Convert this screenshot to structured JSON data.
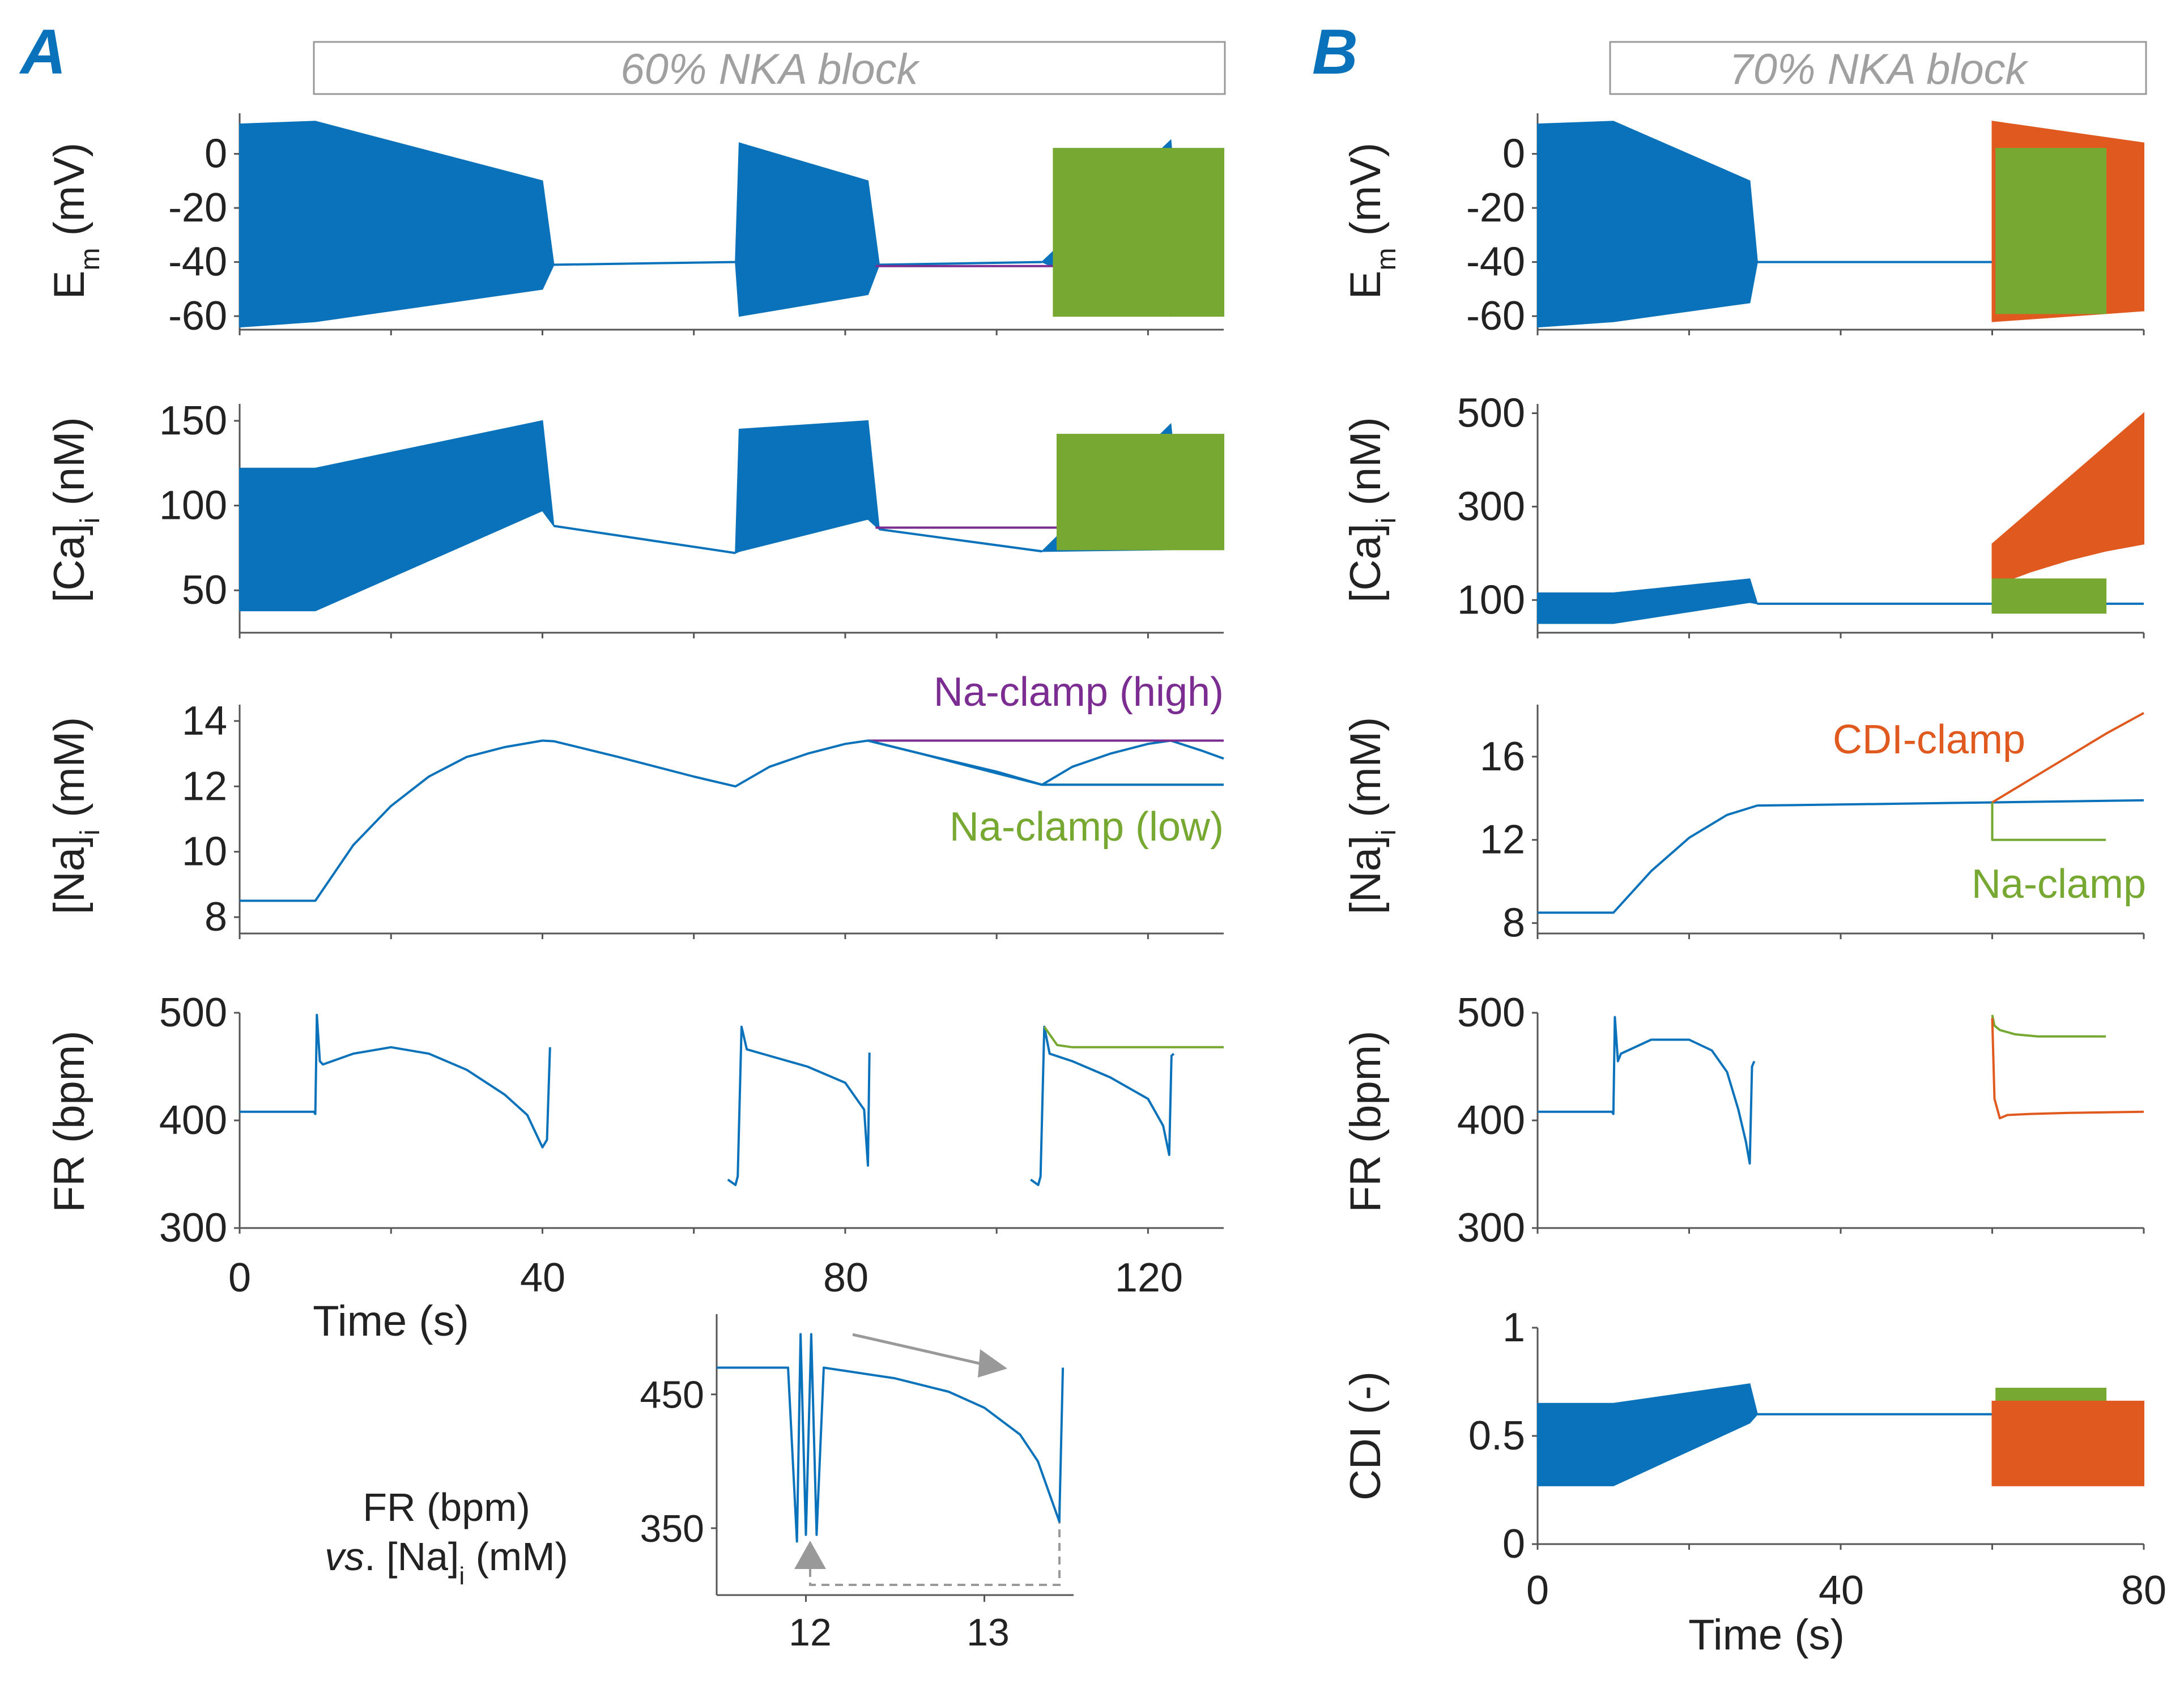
{
  "colors": {
    "blue": "#0a72ba",
    "green": "#76a832",
    "orange": "#e05a20",
    "purple": "#7b2d92",
    "gray": "#a0a0a0",
    "axis": "#555555",
    "panel_letter": "#0a72ba"
  },
  "panel_a": {
    "letter": "A",
    "condition": "60% NKA block"
  },
  "panel_b": {
    "letter": "B",
    "condition": "70% NKA block"
  },
  "labels": {
    "em_y": "E",
    "em_sub": "m",
    "em_unit": " (mV)",
    "ca_y": "[Ca]",
    "ca_sub": "i",
    "ca_unit": " (nM)",
    "na_y": "[Na]",
    "na_sub": "i",
    "na_unit": " (mM)",
    "fr_y": "FR (bpm)",
    "cdi_y": "CDI (-)",
    "time_x": "Time (s)",
    "inset_line1": "FR (bpm)",
    "inset_vs": "vs",
    "inset_rest": ". [Na]",
    "inset_sub": "i",
    "inset_unit": " (mM)"
  },
  "chart_data": [
    {
      "id": "A-Em",
      "type": "line",
      "title": "60% NKA block",
      "ylabel": "Em (mV)",
      "xlim": [
        0,
        130
      ],
      "ylim": [
        -65,
        15
      ],
      "yticks": [
        0,
        -20,
        -40,
        -60
      ],
      "series": [
        {
          "name": "baseline",
          "color": "blue",
          "type": "osc",
          "x": [
            0,
            10,
            40,
            41.5,
            65.5,
            66,
            83,
            84.5,
            106,
            123,
            124.5,
            130
          ],
          "lo": [
            -64,
            -62,
            -50,
            -41,
            -40,
            -60,
            -52,
            -41,
            -40,
            -60,
            -41,
            -41
          ],
          "hi": [
            11,
            12,
            -10,
            -41,
            -40,
            4,
            -10,
            -41,
            -40,
            5,
            -41,
            -41
          ]
        },
        {
          "name": "Na-clamp (high)",
          "color": "purple",
          "type": "line",
          "x": [
            84,
            130
          ],
          "y": [
            -41.5,
            -41.5
          ]
        },
        {
          "name": "Na-clamp (low)",
          "color": "green",
          "type": "band",
          "x": [
            107.5,
            130
          ],
          "lo": [
            -60,
            -60
          ],
          "hi": [
            2,
            2
          ]
        }
      ]
    },
    {
      "id": "A-Ca",
      "type": "line",
      "ylabel": "[Ca]i (nM)",
      "xlim": [
        0,
        130
      ],
      "ylim": [
        25,
        160
      ],
      "yticks": [
        150,
        100,
        50
      ],
      "series": [
        {
          "name": "baseline",
          "color": "blue",
          "type": "osc",
          "x": [
            0,
            10,
            40,
            41.5,
            65.5,
            66,
            83,
            84.5,
            106,
            123,
            124.5,
            130
          ],
          "lo": [
            38,
            38,
            97,
            88,
            72,
            73,
            92,
            86,
            73,
            74,
            84,
            80
          ],
          "hi": [
            122,
            122,
            150,
            88,
            72,
            145,
            150,
            86,
            73,
            148,
            84,
            80
          ]
        },
        {
          "name": "Na-clamp (high)",
          "color": "purple",
          "type": "line",
          "x": [
            84,
            130
          ],
          "y": [
            87,
            87
          ]
        },
        {
          "name": "Na-clamp (low)",
          "color": "green",
          "type": "band",
          "x": [
            108,
            130
          ],
          "lo": [
            74,
            74
          ],
          "hi": [
            142,
            142
          ]
        }
      ]
    },
    {
      "id": "A-Na",
      "type": "line",
      "ylabel": "[Na]i (mM)",
      "xlim": [
        0,
        130
      ],
      "ylim": [
        7.5,
        14.5
      ],
      "yticks": [
        14,
        12,
        10,
        8
      ],
      "annotations": [
        {
          "text": "Na-clamp (high)",
          "color": "purple"
        },
        {
          "text": "Na-clamp (low)",
          "color": "green"
        }
      ],
      "series": [
        {
          "name": "baseline",
          "color": "blue",
          "type": "line",
          "x": [
            0,
            10,
            15,
            20,
            25,
            30,
            35,
            40,
            41.5,
            50,
            60,
            65.5,
            70,
            75,
            80,
            83,
            90,
            100,
            106,
            110,
            115,
            120,
            123,
            127,
            130
          ],
          "y": [
            8.5,
            8.5,
            10.2,
            11.4,
            12.3,
            12.9,
            13.2,
            13.4,
            13.38,
            12.9,
            12.3,
            12.0,
            12.6,
            13.0,
            13.3,
            13.4,
            13.0,
            12.4,
            12.05,
            12.6,
            13.0,
            13.3,
            13.4,
            13.1,
            12.85
          ]
        },
        {
          "name": "Na-clamp (high)",
          "color": "purple",
          "type": "line",
          "x": [
            83,
            130
          ],
          "y": [
            13.4,
            13.4
          ]
        },
        {
          "name": "Na-clamp (low)",
          "color": "green",
          "type": "line",
          "x": [
            106,
            130
          ],
          "y": [
            12.05,
            12.05
          ]
        },
        {
          "name": "baseline-branch",
          "color": "blue",
          "type": "line",
          "x": [
            83,
            90,
            100,
            106,
            115,
            123,
            130
          ],
          "y": [
            13.4,
            13.0,
            12.45,
            12.05,
            12.05,
            12.05,
            12.05
          ]
        }
      ]
    },
    {
      "id": "A-FR",
      "type": "line",
      "ylabel": "FR (bpm)",
      "xlim": [
        0,
        130
      ],
      "ylim": [
        300,
        500
      ],
      "yticks": [
        500,
        400,
        300
      ],
      "series": [
        {
          "name": "baseline",
          "color": "blue",
          "type": "line",
          "x": [
            0,
            9.8,
            10,
            10.2,
            10.6,
            11,
            15,
            20,
            25,
            30,
            35,
            38,
            40,
            40.6,
            41
          ],
          "y": [
            408,
            408,
            406,
            498,
            455,
            452,
            462,
            468,
            462,
            447,
            424,
            405,
            375,
            382,
            468
          ]
        },
        {
          "name": "baseline-2",
          "color": "blue",
          "type": "line",
          "x": [
            64.5,
            65.5,
            65.8,
            66.3,
            67,
            70,
            75,
            80,
            82.5,
            83,
            83.2
          ],
          "y": [
            345,
            340,
            348,
            487,
            466,
            460,
            450,
            435,
            410,
            358,
            463
          ]
        },
        {
          "name": "baseline-3",
          "color": "blue",
          "type": "line",
          "x": [
            104.5,
            105.5,
            105.8,
            106.3,
            107,
            110,
            115,
            120,
            122,
            122.8,
            123.1,
            123.4
          ],
          "y": [
            345,
            340,
            348,
            487,
            462,
            455,
            440,
            420,
            395,
            368,
            460,
            462
          ]
        },
        {
          "name": "Na-clamp (low)",
          "color": "green",
          "type": "line",
          "x": [
            106.3,
            108,
            110,
            130
          ],
          "y": [
            487,
            470,
            468,
            468
          ]
        }
      ]
    },
    {
      "id": "A-inset",
      "type": "line",
      "title": "FR (bpm) vs. [Na]i (mM)",
      "xlim": [
        11.5,
        13.5
      ],
      "ylim": [
        300,
        510
      ],
      "yticks": [
        450,
        350
      ],
      "xticks": [
        12,
        13
      ],
      "series": [
        {
          "name": "FR vs Na",
          "color": "blue",
          "type": "line",
          "x": [
            11.5,
            11.9,
            11.95,
            11.97,
            12.0,
            12.03,
            12.06,
            12.1,
            12.5,
            12.8,
            13.0,
            13.2,
            13.3,
            13.38,
            13.42,
            13.44
          ],
          "y": [
            470,
            470,
            340,
            495,
            345,
            495,
            345,
            470,
            462,
            452,
            440,
            420,
            400,
            370,
            355,
            470
          ]
        }
      ]
    },
    {
      "id": "B-Em",
      "type": "line",
      "title": "70% NKA block",
      "ylabel": "Em (mV)",
      "xlim": [
        0,
        80
      ],
      "ylim": [
        -65,
        15
      ],
      "yticks": [
        0,
        -20,
        -40,
        -60
      ],
      "series": [
        {
          "name": "baseline",
          "color": "blue",
          "type": "osc",
          "x": [
            0,
            10,
            28,
            29,
            30,
            80
          ],
          "lo": [
            -64,
            -62,
            -55,
            -40,
            -40,
            -40
          ],
          "hi": [
            11,
            12,
            -10,
            -40,
            -40,
            -40
          ]
        },
        {
          "name": "CDI-clamp",
          "color": "orange",
          "type": "band",
          "x": [
            60,
            80
          ],
          "lo": [
            -62,
            -58
          ],
          "hi": [
            12,
            4
          ]
        },
        {
          "name": "Na-clamp",
          "color": "green",
          "type": "band",
          "x": [
            60.5,
            75
          ],
          "lo": [
            -59,
            -59
          ],
          "hi": [
            2,
            2
          ]
        }
      ]
    },
    {
      "id": "B-Ca",
      "type": "line",
      "ylabel": "[Ca]i (nM)",
      "xlim": [
        0,
        80
      ],
      "ylim": [
        30,
        520
      ],
      "yticks": [
        500,
        300,
        100
      ],
      "series": [
        {
          "name": "baseline",
          "color": "blue",
          "type": "osc",
          "x": [
            0,
            10,
            28,
            29,
            80
          ],
          "lo": [
            50,
            50,
            95,
            92,
            92
          ],
          "hi": [
            115,
            115,
            145,
            92,
            92
          ]
        },
        {
          "name": "CDI-clamp",
          "color": "orange",
          "type": "band",
          "x": [
            60,
            65,
            70,
            75,
            80
          ],
          "lo": [
            130,
            160,
            185,
            205,
            220
          ],
          "hi": [
            220,
            290,
            360,
            430,
            500
          ]
        },
        {
          "name": "Na-clamp",
          "color": "green",
          "type": "band",
          "x": [
            60,
            75
          ],
          "lo": [
            72,
            72
          ],
          "hi": [
            145,
            145
          ]
        }
      ]
    },
    {
      "id": "B-Na",
      "type": "line",
      "ylabel": "[Na]i (mM)",
      "xlim": [
        0,
        80
      ],
      "ylim": [
        7.5,
        18.5
      ],
      "yticks": [
        16,
        12,
        8
      ],
      "annotations": [
        {
          "text": "CDI-clamp",
          "color": "orange"
        },
        {
          "text": "Na-clamp",
          "color": "green"
        }
      ],
      "series": [
        {
          "name": "baseline",
          "color": "blue",
          "type": "line",
          "x": [
            0,
            10,
            15,
            20,
            25,
            29,
            40,
            60,
            80
          ],
          "y": [
            8.5,
            8.5,
            10.5,
            12.1,
            13.2,
            13.65,
            13.7,
            13.8,
            13.9
          ]
        },
        {
          "name": "CDI-clamp",
          "color": "orange",
          "type": "line",
          "x": [
            60,
            65,
            70,
            75,
            80
          ],
          "y": [
            13.8,
            14.9,
            16.0,
            17.1,
            18.1
          ]
        },
        {
          "name": "Na-clamp",
          "color": "green",
          "type": "line",
          "x": [
            60,
            60,
            75
          ],
          "y": [
            13.8,
            12.0,
            12.0
          ]
        }
      ]
    },
    {
      "id": "B-FR",
      "type": "line",
      "ylabel": "FR (bpm)",
      "xlim": [
        0,
        80
      ],
      "ylim": [
        300,
        500
      ],
      "yticks": [
        500,
        400,
        300
      ],
      "series": [
        {
          "name": "baseline",
          "color": "blue",
          "type": "line",
          "x": [
            0,
            9.8,
            10,
            10.2,
            10.6,
            11,
            15,
            20,
            23,
            25,
            26.5,
            27.5,
            28,
            28.3,
            28.6
          ],
          "y": [
            408,
            408,
            406,
            496,
            455,
            462,
            475,
            475,
            465,
            445,
            410,
            380,
            360,
            450,
            455
          ]
        },
        {
          "name": "Na-clamp",
          "color": "green",
          "type": "line",
          "x": [
            60,
            60.3,
            61,
            63,
            66,
            70,
            75
          ],
          "y": [
            498,
            488,
            484,
            480,
            478,
            478,
            478
          ]
        },
        {
          "name": "CDI-clamp",
          "color": "orange",
          "type": "line",
          "x": [
            60,
            60.3,
            61,
            62,
            65,
            70,
            80
          ],
          "y": [
            495,
            420,
            402,
            405,
            406,
            407,
            408
          ]
        }
      ]
    },
    {
      "id": "B-CDI",
      "type": "line",
      "ylabel": "CDI (-)",
      "xlabel": "Time (s)",
      "xlim": [
        0,
        80
      ],
      "ylim": [
        0,
        1
      ],
      "yticks": [
        1,
        0.5,
        0
      ],
      "xticks": [
        0,
        40,
        80
      ],
      "series": [
        {
          "name": "baseline",
          "color": "blue",
          "type": "osc",
          "x": [
            0,
            10,
            28,
            29,
            80
          ],
          "lo": [
            0.27,
            0.27,
            0.56,
            0.6,
            0.6
          ],
          "hi": [
            0.65,
            0.65,
            0.74,
            0.6,
            0.6
          ]
        },
        {
          "name": "Na-clamp",
          "color": "green",
          "type": "band",
          "x": [
            60.5,
            75
          ],
          "lo": [
            0.6,
            0.6
          ],
          "hi": [
            0.72,
            0.72
          ]
        },
        {
          "name": "CDI-clamp",
          "color": "orange",
          "type": "band",
          "x": [
            60,
            80
          ],
          "lo": [
            0.27,
            0.27
          ],
          "hi": [
            0.66,
            0.66
          ]
        }
      ]
    }
  ],
  "axis_ticks": {
    "a_time": [
      "0",
      "40",
      "80",
      "120"
    ],
    "b_time": [
      "0",
      "40",
      "80"
    ],
    "inset_x": [
      "12",
      "13"
    ]
  }
}
